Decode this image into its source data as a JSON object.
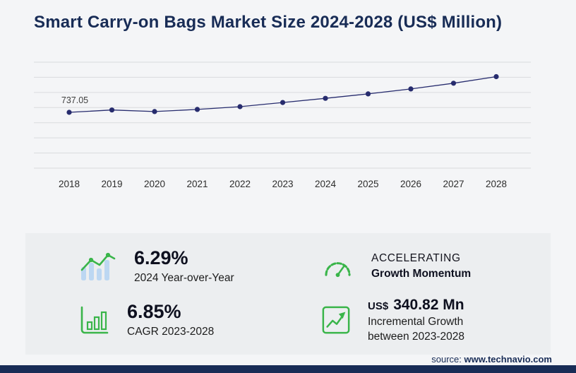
{
  "title": "Smart Carry-on Bags Market Size 2024-2028 (US$ Million)",
  "chart_data": {
    "type": "line",
    "title": "Smart Carry-on Bags Market Size 2024-2028 (US$ Million)",
    "x": [
      "2018",
      "2019",
      "2020",
      "2021",
      "2022",
      "2023",
      "2024",
      "2025",
      "2026",
      "2027",
      "2028"
    ],
    "values": [
      737.05,
      768,
      748,
      776,
      812,
      867.48,
      922.05,
      981,
      1046,
      1122,
      1208.3
    ],
    "first_point_label": "737.05",
    "ylim": [
      0,
      1400
    ],
    "grid_step": 200,
    "grid": true,
    "legend_position": "none",
    "line_color": "#272c6e",
    "point_color": "#272c6e",
    "grid_color": "#d9dbde",
    "tick_color": "#2d2d2d",
    "annotation_color": "#3f3f3f"
  },
  "stats": {
    "yoy": {
      "icon": "bar-line-growth-icon",
      "value": "6.29%",
      "label": "2024 Year-over-Year"
    },
    "cagr": {
      "icon": "boxed-bar-chart-icon",
      "value": "6.85%",
      "label_prefix": "CAGR",
      "label_range": "2023-2028"
    },
    "momentum": {
      "icon": "speedometer-icon",
      "line1": "ACCELERATING",
      "line2": "Growth Momentum"
    },
    "incremental": {
      "icon": "boxed-growth-arrow-icon",
      "currency": "US$",
      "value": "340.82 Mn",
      "line1": "Incremental Growth",
      "line2": "between 2023-2028"
    }
  },
  "source": {
    "prefix": "source: ",
    "domain": "www.technavio.com"
  },
  "colors": {
    "accent_green": "#3ab54a",
    "light_blue_bars": "#bcd7f2",
    "navy": "#182c56",
    "line_navy": "#272c6e",
    "panel_bg": "#eceef0",
    "page_bg": "#f4f5f7"
  }
}
